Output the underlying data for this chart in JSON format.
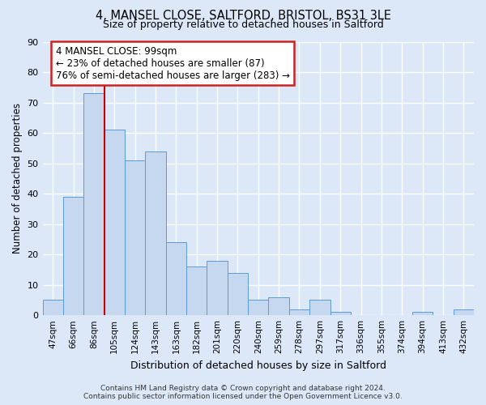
{
  "title": "4, MANSEL CLOSE, SALTFORD, BRISTOL, BS31 3LE",
  "subtitle": "Size of property relative to detached houses in Saltford",
  "xlabel": "Distribution of detached houses by size in Saltford",
  "ylabel": "Number of detached properties",
  "bar_color": "#c5d8f0",
  "bar_edge_color": "#5b9bd5",
  "background_color": "#dce8f8",
  "categories": [
    "47sqm",
    "66sqm",
    "86sqm",
    "105sqm",
    "124sqm",
    "143sqm",
    "163sqm",
    "182sqm",
    "201sqm",
    "220sqm",
    "240sqm",
    "259sqm",
    "278sqm",
    "297sqm",
    "317sqm",
    "336sqm",
    "355sqm",
    "374sqm",
    "394sqm",
    "413sqm",
    "432sqm"
  ],
  "values": [
    5,
    39,
    73,
    61,
    51,
    54,
    24,
    16,
    18,
    14,
    5,
    6,
    2,
    5,
    1,
    0,
    0,
    0,
    1,
    0,
    2
  ],
  "ylim": [
    0,
    90
  ],
  "yticks": [
    0,
    10,
    20,
    30,
    40,
    50,
    60,
    70,
    80,
    90
  ],
  "vline_color": "#cc0000",
  "vline_idx": 2.5,
  "annotation_title": "4 MANSEL CLOSE: 99sqm",
  "annotation_line1": "← 23% of detached houses are smaller (87)",
  "annotation_line2": "76% of semi-detached houses are larger (283) →",
  "annotation_box_color": "#ffffff",
  "annotation_box_edge": "#cc2222",
  "footer_line1": "Contains HM Land Registry data © Crown copyright and database right 2024.",
  "footer_line2": "Contains public sector information licensed under the Open Government Licence v3.0."
}
